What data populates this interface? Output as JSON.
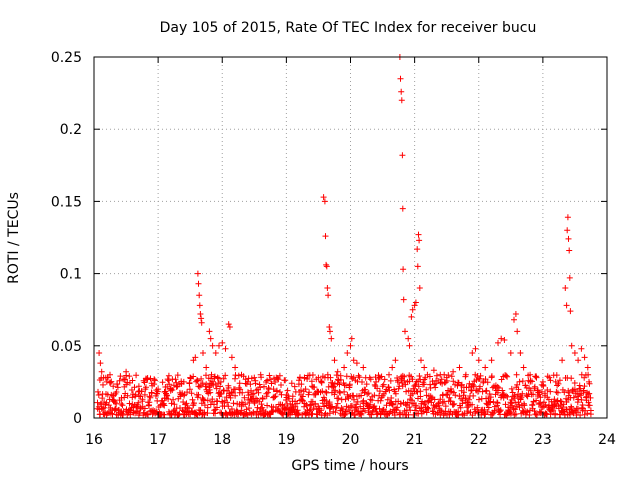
{
  "chart_data": {
    "type": "scatter",
    "title": "Day 105 of 2015, Rate Of TEC Index for receiver bucu",
    "xlabel": "GPS time / hours",
    "ylabel": "ROTI / TECUs",
    "xlim": [
      16,
      24
    ],
    "ylim": [
      0,
      0.25
    ],
    "xticks": [
      16,
      17,
      18,
      19,
      20,
      21,
      22,
      23,
      24
    ],
    "xtick_labels": [
      "16",
      "17",
      "18",
      "19",
      "20",
      "21",
      "22",
      "23",
      "24"
    ],
    "yticks": [
      0,
      0.05,
      0.1,
      0.15,
      0.2,
      0.25
    ],
    "ytick_labels": [
      "0",
      "0.05",
      "0.1",
      "0.15",
      "0.2",
      "0.25"
    ],
    "grid": true,
    "marker": "+",
    "color": "#ff0000",
    "background_band": {
      "x_start": 16.05,
      "x_end": 23.75,
      "y_min": 0.002,
      "y_max": 0.022
    },
    "series": [
      {
        "name": "ROTI",
        "points": [
          [
            16.08,
            0.045
          ],
          [
            16.1,
            0.038
          ],
          [
            16.12,
            0.032
          ],
          [
            16.15,
            0.028
          ],
          [
            16.2,
            0.025
          ],
          [
            16.25,
            0.03
          ],
          [
            16.3,
            0.022
          ],
          [
            16.35,
            0.018
          ],
          [
            16.5,
            0.032
          ],
          [
            16.55,
            0.029
          ],
          [
            16.6,
            0.026
          ],
          [
            16.7,
            0.022
          ],
          [
            16.8,
            0.02
          ],
          [
            16.9,
            0.024
          ],
          [
            17.0,
            0.02
          ],
          [
            17.1,
            0.018
          ],
          [
            17.2,
            0.02
          ],
          [
            17.3,
            0.022
          ],
          [
            17.4,
            0.025
          ],
          [
            17.5,
            0.028
          ],
          [
            17.55,
            0.04
          ],
          [
            17.58,
            0.042
          ],
          [
            17.62,
            0.1
          ],
          [
            17.63,
            0.093
          ],
          [
            17.64,
            0.085
          ],
          [
            17.65,
            0.078
          ],
          [
            17.66,
            0.072
          ],
          [
            17.67,
            0.069
          ],
          [
            17.68,
            0.066
          ],
          [
            17.7,
            0.045
          ],
          [
            17.75,
            0.035
          ],
          [
            17.8,
            0.06
          ],
          [
            17.82,
            0.055
          ],
          [
            17.85,
            0.05
          ],
          [
            17.9,
            0.045
          ],
          [
            17.95,
            0.05
          ],
          [
            18.0,
            0.052
          ],
          [
            18.05,
            0.048
          ],
          [
            18.1,
            0.065
          ],
          [
            18.12,
            0.063
          ],
          [
            18.15,
            0.042
          ],
          [
            18.2,
            0.035
          ],
          [
            18.3,
            0.03
          ],
          [
            18.4,
            0.025
          ],
          [
            18.5,
            0.028
          ],
          [
            18.6,
            0.03
          ],
          [
            18.7,
            0.026
          ],
          [
            18.8,
            0.02
          ],
          [
            18.9,
            0.018
          ],
          [
            19.0,
            0.016
          ],
          [
            19.1,
            0.015
          ],
          [
            19.2,
            0.018
          ],
          [
            19.3,
            0.02
          ],
          [
            19.4,
            0.022
          ],
          [
            19.5,
            0.028
          ],
          [
            19.55,
            0.025
          ],
          [
            19.58,
            0.153
          ],
          [
            19.6,
            0.15
          ],
          [
            19.61,
            0.126
          ],
          [
            19.62,
            0.106
          ],
          [
            19.63,
            0.105
          ],
          [
            19.64,
            0.09
          ],
          [
            19.65,
            0.085
          ],
          [
            19.67,
            0.063
          ],
          [
            19.68,
            0.06
          ],
          [
            19.7,
            0.055
          ],
          [
            19.75,
            0.04
          ],
          [
            19.8,
            0.032
          ],
          [
            19.9,
            0.035
          ],
          [
            19.95,
            0.045
          ],
          [
            20.0,
            0.05
          ],
          [
            20.02,
            0.055
          ],
          [
            20.05,
            0.04
          ],
          [
            20.1,
            0.038
          ],
          [
            20.2,
            0.035
          ],
          [
            20.3,
            0.028
          ],
          [
            20.4,
            0.025
          ],
          [
            20.5,
            0.022
          ],
          [
            20.6,
            0.03
          ],
          [
            20.65,
            0.035
          ],
          [
            20.7,
            0.04
          ],
          [
            20.77,
            0.25
          ],
          [
            20.78,
            0.235
          ],
          [
            20.79,
            0.226
          ],
          [
            20.8,
            0.22
          ],
          [
            20.81,
            0.182
          ],
          [
            20.815,
            0.145
          ],
          [
            20.82,
            0.103
          ],
          [
            20.83,
            0.082
          ],
          [
            20.85,
            0.06
          ],
          [
            20.9,
            0.055
          ],
          [
            20.92,
            0.05
          ],
          [
            20.95,
            0.07
          ],
          [
            20.97,
            0.075
          ],
          [
            21.0,
            0.078
          ],
          [
            21.02,
            0.08
          ],
          [
            21.05,
            0.105
          ],
          [
            21.04,
            0.117
          ],
          [
            21.06,
            0.127
          ],
          [
            21.07,
            0.123
          ],
          [
            21.08,
            0.09
          ],
          [
            21.1,
            0.04
          ],
          [
            21.15,
            0.035
          ],
          [
            21.2,
            0.03
          ],
          [
            21.3,
            0.033
          ],
          [
            21.4,
            0.03
          ],
          [
            21.5,
            0.028
          ],
          [
            21.6,
            0.032
          ],
          [
            21.7,
            0.035
          ],
          [
            21.8,
            0.03
          ],
          [
            21.9,
            0.045
          ],
          [
            21.95,
            0.048
          ],
          [
            22.0,
            0.04
          ],
          [
            22.1,
            0.035
          ],
          [
            22.2,
            0.04
          ],
          [
            22.3,
            0.052
          ],
          [
            22.35,
            0.055
          ],
          [
            22.4,
            0.054
          ],
          [
            22.5,
            0.045
          ],
          [
            22.55,
            0.068
          ],
          [
            22.58,
            0.072
          ],
          [
            22.6,
            0.06
          ],
          [
            22.65,
            0.045
          ],
          [
            22.7,
            0.035
          ],
          [
            22.8,
            0.03
          ],
          [
            22.9,
            0.028
          ],
          [
            23.0,
            0.025
          ],
          [
            23.1,
            0.028
          ],
          [
            23.2,
            0.025
          ],
          [
            23.3,
            0.04
          ],
          [
            23.35,
            0.09
          ],
          [
            23.37,
            0.078
          ],
          [
            23.38,
            0.13
          ],
          [
            23.39,
            0.139
          ],
          [
            23.4,
            0.124
          ],
          [
            23.41,
            0.116
          ],
          [
            23.42,
            0.097
          ],
          [
            23.43,
            0.074
          ],
          [
            23.45,
            0.05
          ],
          [
            23.5,
            0.045
          ],
          [
            23.55,
            0.04
          ],
          [
            23.6,
            0.048
          ],
          [
            23.65,
            0.042
          ],
          [
            23.7,
            0.035
          ],
          [
            23.72,
            0.025
          ]
        ]
      }
    ]
  }
}
